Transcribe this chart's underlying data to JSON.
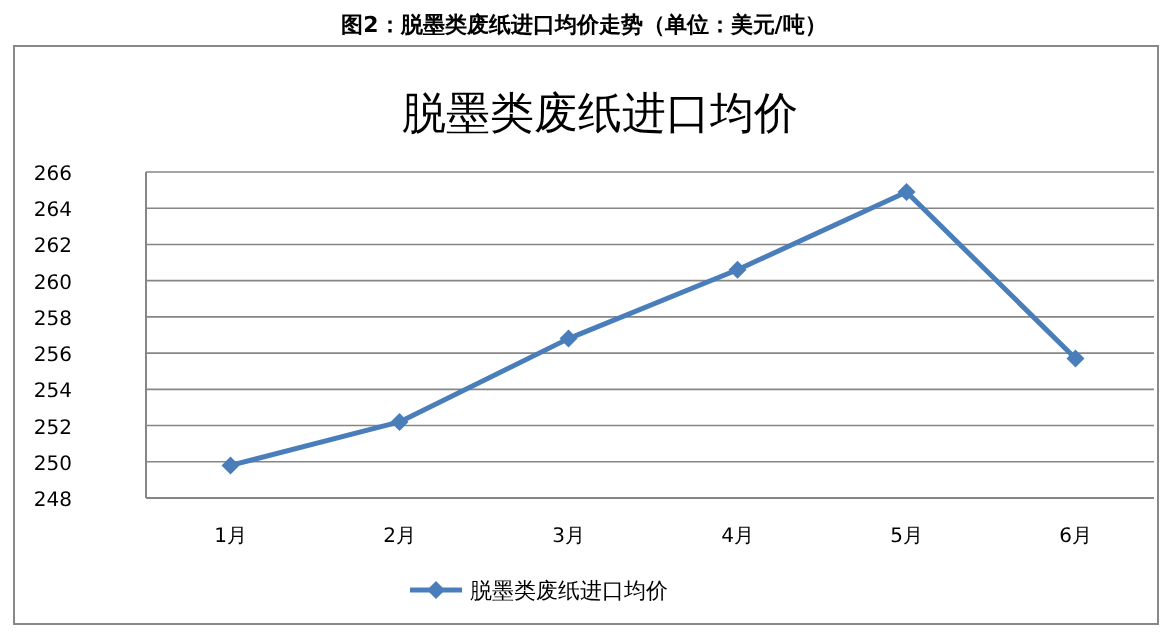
{
  "chart_data": {
    "type": "line",
    "title": "脱墨类废纸进口均价",
    "annotations": [
      "图2：脱墨类废纸进口均价走势（单位：美元/吨）"
    ],
    "categories": [
      "1月",
      "2月",
      "3月",
      "4月",
      "5月",
      "6月"
    ],
    "series": [
      {
        "name": "脱墨类废纸进口均价",
        "color": "#4a7ebb",
        "values": [
          249.8,
          252.2,
          256.8,
          260.6,
          264.9,
          255.7
        ]
      }
    ],
    "ylim": [
      248,
      266
    ],
    "yticks": [
      248,
      250,
      252,
      254,
      256,
      258,
      260,
      262,
      264,
      266
    ],
    "grid": "y",
    "legend": "bottom",
    "marker": "diamond",
    "line_style": "solid"
  }
}
